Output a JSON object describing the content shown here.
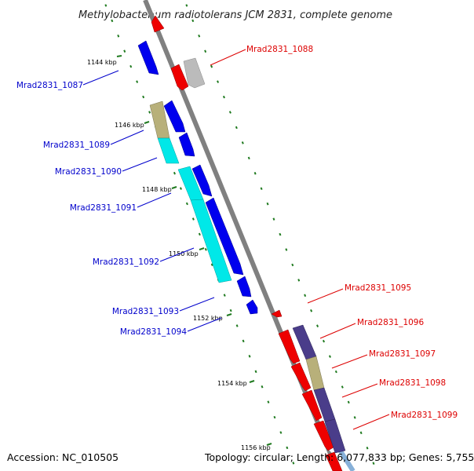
{
  "title": "Methylobacterium radiotolerans JCM 2831, complete genome",
  "footer": {
    "accession": "Accession: NC_010505",
    "summary": "Topology: circular; Length: 6,077,833 bp; Genes: 5,755"
  },
  "colors": {
    "forward_gene": "#0000ee",
    "reverse_gene": "#ee0000",
    "cds_cyan": "#00e8e8",
    "cds_khaki": "#b8b07a",
    "cds_purple": "#4a3d8a",
    "cds_gray": "#bbbbbb",
    "tick": "#1f7a1f",
    "forward_label": "#0000cc",
    "reverse_label": "#dd0000",
    "backbone": "#808080"
  },
  "scale_ticks": [
    "1144 kbp",
    "1146 kbp",
    "1148 kbp",
    "1150 kbp",
    "1152 kbp",
    "1154 kbp",
    "1156 kbp"
  ],
  "forward_labels": [
    "Mrad2831_1087",
    "Mrad2831_1089",
    "Mrad2831_1090",
    "Mrad2831_1091",
    "Mrad2831_1092",
    "Mrad2831_1093",
    "Mrad2831_1094"
  ],
  "reverse_labels": [
    "Mrad2831_1088",
    "Mrad2831_1095",
    "Mrad2831_1096",
    "Mrad2831_1097",
    "Mrad2831_1098",
    "Mrad2831_1099"
  ]
}
